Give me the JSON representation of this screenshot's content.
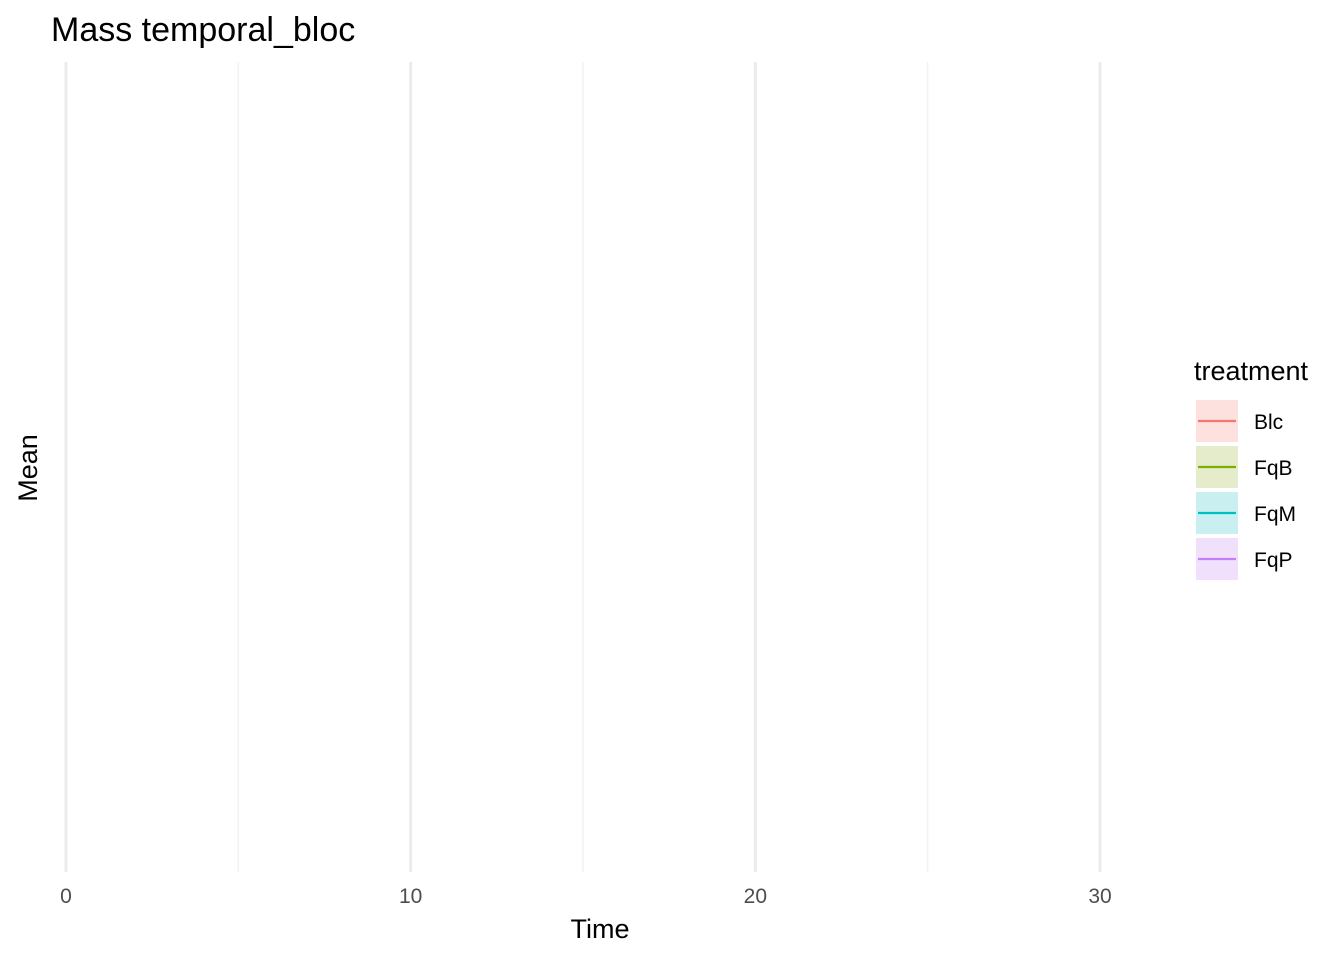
{
  "chart_data": {
    "type": "line",
    "title": "Mass temporal_bloc",
    "xlabel": "Time",
    "ylabel": "Mean",
    "xlim": [
      0,
      32.5
    ],
    "x_ticks": [
      0,
      10,
      20,
      30
    ],
    "x_minor_ticks": [
      5,
      15,
      25
    ],
    "y_ticks": [],
    "grid": true,
    "legend": {
      "title": "treatment",
      "placement": "right",
      "entries": [
        {
          "name": "Blc",
          "color": "#F8766D",
          "fill": "#fde1df"
        },
        {
          "name": "FqB",
          "color": "#7CAE00",
          "fill": "#e5eccb"
        },
        {
          "name": "FqM",
          "color": "#00BFC4",
          "fill": "#c9eff0"
        },
        {
          "name": "FqP",
          "color": "#C77CFF",
          "fill": "#f0e0fc"
        }
      ]
    },
    "series": []
  },
  "style": {
    "grid_major_color": "#ebebeb",
    "grid_minor_color": "#f2f2f2"
  }
}
